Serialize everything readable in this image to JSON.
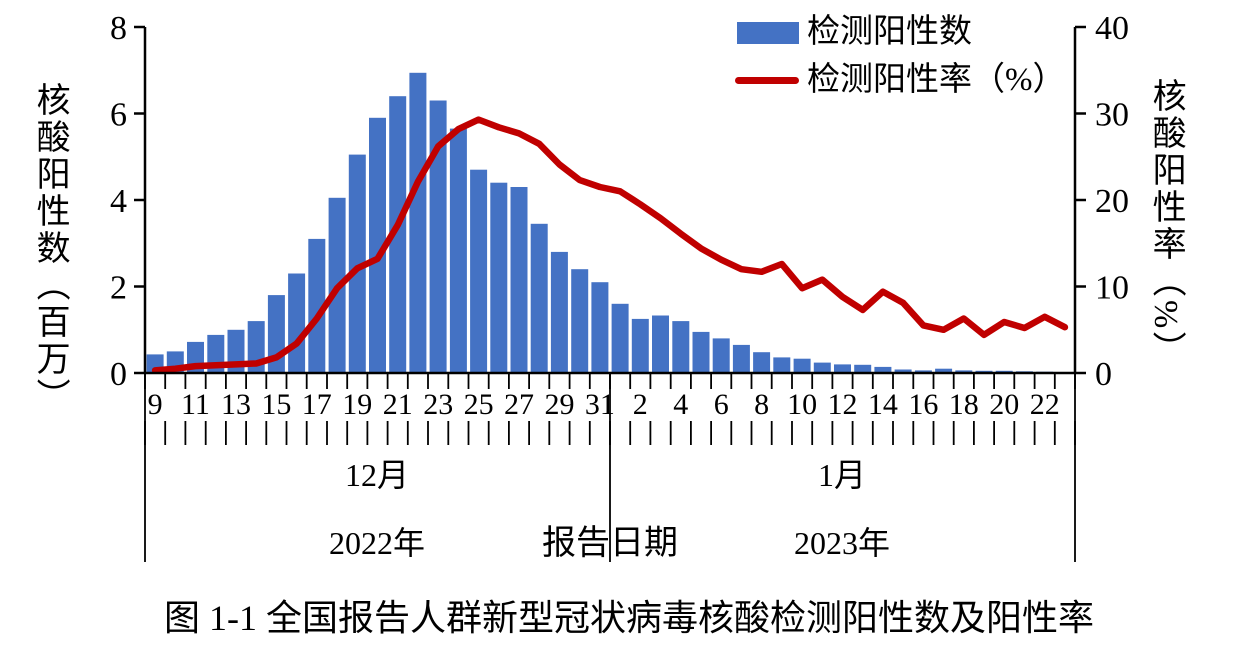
{
  "caption": "图 1-1 全国报告人群新型冠状病毒核酸检测阳性数及阳性率",
  "legend": {
    "bars_label": "检测阳性数",
    "rate_label": "检测阳性率（%）"
  },
  "axes": {
    "left": {
      "title": "核酸阳性数（百万）",
      "ticks": [
        0,
        2,
        4,
        6,
        8
      ],
      "max": 8
    },
    "right": {
      "title": "核酸阳性率（%）",
      "ticks": [
        0,
        10,
        20,
        30,
        40
      ],
      "max": 40
    },
    "x": {
      "title": "报告日期",
      "month_left": "12月",
      "month_right": "1月",
      "year_left": "2022年",
      "year_right": "2023年",
      "day_labels": [
        "9",
        "",
        "11",
        "",
        "13",
        "",
        "15",
        "",
        "17",
        "",
        "19",
        "",
        "21",
        "",
        "23",
        "",
        "25",
        "",
        "27",
        "",
        "29",
        "",
        "31",
        "",
        "2",
        "",
        "4",
        "",
        "6",
        "",
        "8",
        "",
        "10",
        "",
        "12",
        "",
        "14",
        "",
        "16",
        "",
        "18",
        "",
        "20",
        "",
        "22",
        ""
      ]
    }
  },
  "colors": {
    "bar": "#4472C4",
    "line": "#C00000",
    "axis": "#000000"
  },
  "chart_data": {
    "type": "combo-bar-line",
    "title": "图 1-1 全国报告人群新型冠状病毒核酸检测阳性数及阳性率",
    "categories": [
      "12-09",
      "12-10",
      "12-11",
      "12-12",
      "12-13",
      "12-14",
      "12-15",
      "12-16",
      "12-17",
      "12-18",
      "12-19",
      "12-20",
      "12-21",
      "12-22",
      "12-23",
      "12-24",
      "12-25",
      "12-26",
      "12-27",
      "12-28",
      "12-29",
      "12-30",
      "12-31",
      "01-01",
      "01-02",
      "01-03",
      "01-04",
      "01-05",
      "01-06",
      "01-07",
      "01-08",
      "01-09",
      "01-10",
      "01-11",
      "01-12",
      "01-13",
      "01-14",
      "01-15",
      "01-16",
      "01-17",
      "01-18",
      "01-19",
      "01-20",
      "01-21",
      "01-22",
      "01-23"
    ],
    "series": [
      {
        "name": "检测阳性数",
        "type": "bar",
        "axis": "left",
        "unit": "百万",
        "color": "#4472C4",
        "values": [
          0.43,
          0.5,
          0.72,
          0.88,
          1.0,
          1.2,
          1.8,
          2.3,
          3.1,
          4.05,
          5.05,
          5.9,
          6.4,
          6.94,
          6.3,
          5.65,
          4.7,
          4.4,
          4.3,
          3.45,
          2.8,
          2.4,
          2.1,
          1.6,
          1.25,
          1.33,
          1.2,
          0.95,
          0.8,
          0.65,
          0.48,
          0.36,
          0.33,
          0.24,
          0.2,
          0.19,
          0.14,
          0.08,
          0.06,
          0.1,
          0.06,
          0.05,
          0.05,
          0.04,
          0.03,
          0.02
        ]
      },
      {
        "name": "检测阳性率（%）",
        "type": "line",
        "axis": "right",
        "unit": "%",
        "color": "#C00000",
        "values": [
          0.3,
          0.5,
          0.8,
          0.9,
          1.0,
          1.1,
          1.8,
          3.4,
          6.3,
          9.8,
          12.1,
          13.2,
          17.1,
          22.1,
          26.2,
          28.2,
          29.3,
          28.4,
          27.7,
          26.5,
          24.1,
          22.3,
          21.5,
          21.0,
          19.5,
          17.9,
          16.1,
          14.4,
          13.1,
          12.0,
          11.7,
          12.6,
          9.8,
          10.8,
          8.8,
          7.3,
          9.4,
          8.1,
          5.5,
          5.0,
          6.3,
          4.4,
          5.9,
          5.2,
          6.5,
          5.3
        ]
      }
    ],
    "xlabel": "报告日期",
    "ylabel_left": "核酸阳性数（百万）",
    "ylabel_right": "核酸阳性率（%）",
    "left_ylim": [
      0,
      8
    ],
    "right_ylim": [
      0,
      40
    ],
    "grid": false,
    "legend_position": "top-right"
  }
}
